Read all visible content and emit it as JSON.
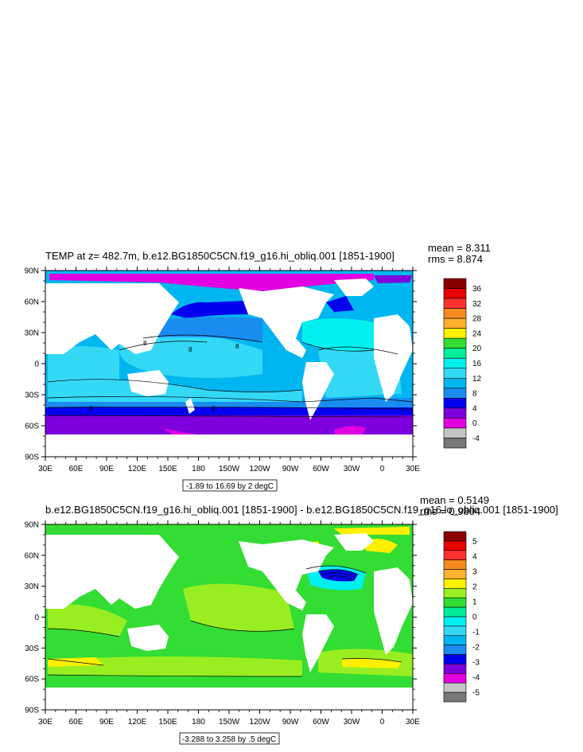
{
  "panels": [
    {
      "title": "TEMP at z= 482.7m, b.e12.BG1850C5CN.f19_g16.hi_obliq.001 [1851-1900]",
      "mean": "mean = 8.311",
      "rms": "rms = 8.874",
      "range_note": "-1.89 to 16.69 by 2 degC",
      "lat_labels": [
        "90N",
        "60N",
        "30N",
        "0",
        "30S",
        "60S",
        "90S"
      ],
      "lon_labels": [
        "30E",
        "60E",
        "90E",
        "120E",
        "150E",
        "180",
        "150W",
        "120W",
        "90W",
        "60W",
        "30W",
        "0",
        "30E"
      ],
      "contour_labels": [
        "8",
        "8",
        "8",
        "8",
        "8"
      ],
      "legend": {
        "labels": [
          "36",
          "32",
          "28",
          "24",
          "20",
          "16",
          "12",
          "8",
          "4",
          "0",
          "-4"
        ],
        "colors": [
          "#8a0000",
          "#e60000",
          "#ff3030",
          "#f58a1f",
          "#ffb030",
          "#fff000",
          "#33dd33",
          "#00ee99",
          "#00f0f0",
          "#33d8f5",
          "#00b6f0",
          "#1a8cf0",
          "#0000ee",
          "#7d00dd",
          "#e100e1",
          "#c4c4c4",
          "#777777"
        ]
      }
    },
    {
      "title": "b.e12.BG1850C5CN.f19_g16.hi_obliq.001 [1851-1900] - b.e12.BG1850C5CN.f19_g16.lo_obliq.001 [1851-1900]",
      "mean": "mean = 0.5149",
      "rms": "rms = 0.9804",
      "range_note": "-3.288 to 3.258 by .5 degC",
      "lat_labels": [
        "90N",
        "60N",
        "30N",
        "0",
        "30S",
        "60S",
        "90S"
      ],
      "lon_labels": [
        "30E",
        "60E",
        "90E",
        "120E",
        "150E",
        "180",
        "150W",
        "120W",
        "90W",
        "60W",
        "30W",
        "0",
        "30E"
      ],
      "legend": {
        "labels": [
          "5",
          "4",
          "3",
          "2",
          "1",
          "0",
          "-1",
          "-2",
          "-3",
          "-4",
          "-5"
        ],
        "colors": [
          "#8a0000",
          "#e60000",
          "#ff3030",
          "#f58a1f",
          "#ffb030",
          "#fff000",
          "#99ee22",
          "#33dd33",
          "#00ee99",
          "#00f0f0",
          "#33d8f5",
          "#00b6f0",
          "#1a8cf0",
          "#0000ee",
          "#7d00dd",
          "#e100e1",
          "#c4c4c4",
          "#777777"
        ]
      }
    }
  ],
  "colors": {
    "land": "#ffffff",
    "p1_arctic": "#e100e1",
    "p1_warm": "#33d8f5",
    "p1_mid": "#00b6f0",
    "p1_cool": "#1a8cf0",
    "p1_cold": "#0000ee",
    "p1_southern": "#7d00dd",
    "p1_north_atl_warm": "#00f0f0",
    "p2_base": "#33dd33",
    "p2_light": "#99ee22",
    "p2_yellow": "#fff000",
    "p2_cyan": "#00f0f0",
    "p2_blue": "#0000ee"
  }
}
